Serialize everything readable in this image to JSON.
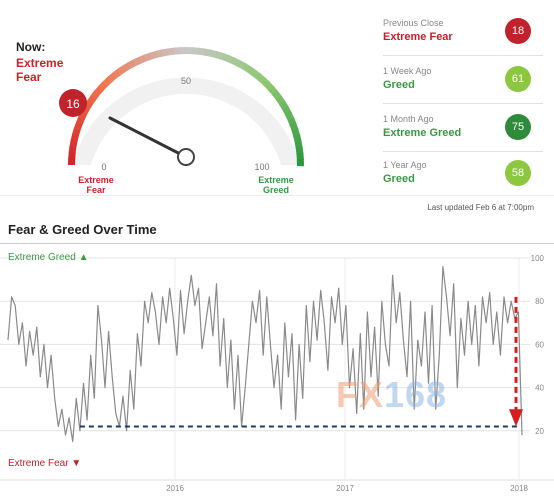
{
  "now": {
    "label": "Now:",
    "value_lines": [
      "Extreme",
      "Fear"
    ]
  },
  "gauge": {
    "value": 16,
    "labels": {
      "min": "0",
      "mid": "50",
      "max": "100"
    },
    "left_caption": [
      "Extreme",
      "Fear"
    ],
    "right_caption": [
      "Extreme",
      "Greed"
    ],
    "colors": {
      "fear": "#d0212a",
      "greed": "#3a9a42",
      "badge": "#c0232b"
    }
  },
  "history": [
    {
      "title": "Previous Close",
      "status": "Extreme Fear",
      "value": "18",
      "status_color": "#c0232b",
      "badge_color": "#c0232b"
    },
    {
      "title": "1 Week Ago",
      "status": "Greed",
      "value": "61",
      "status_color": "#3a9a42",
      "badge_color": "#8dc63f"
    },
    {
      "title": "1 Month Ago",
      "status": "Extreme Greed",
      "value": "75",
      "status_color": "#3a9a42",
      "badge_color": "#2e8b3a"
    },
    {
      "title": "1 Year Ago",
      "status": "Greed",
      "value": "58",
      "status_color": "#3a9a42",
      "badge_color": "#8dc63f"
    }
  ],
  "last_updated": "Last updated Feb 6 at 7:00pm",
  "chart_title": "Fear & Greed Over Time",
  "watermark": {
    "fx": "FX",
    "num": "168"
  },
  "chart_data": {
    "type": "line",
    "title": "Fear & Greed Over Time",
    "xlabel": "",
    "ylabel": "",
    "ylim": [
      0,
      100
    ],
    "y_ticks": [
      20,
      40,
      60,
      80,
      100
    ],
    "x_ticks": [
      "2016",
      "2017",
      "2018"
    ],
    "top_label": "Extreme Greed ▲",
    "bottom_label": "Extreme Fear ▼",
    "series": [
      {
        "values": [
          62,
          82,
          78,
          60,
          70,
          50,
          66,
          55,
          68,
          45,
          60,
          40,
          55,
          35,
          22,
          30,
          18,
          26,
          15,
          35,
          20,
          42,
          25,
          55,
          35,
          78,
          62,
          40,
          66,
          45,
          28,
          22,
          36,
          20,
          48,
          30,
          65,
          50,
          80,
          70,
          84,
          75,
          60,
          82,
          70,
          86,
          72,
          55,
          85,
          65,
          80,
          92,
          78,
          86,
          58,
          70,
          82,
          64,
          88,
          50,
          72,
          40,
          62,
          30,
          55,
          22,
          40,
          60,
          80,
          70,
          85,
          55,
          82,
          60,
          40,
          55,
          30,
          70,
          45,
          65,
          25,
          60,
          35,
          78,
          52,
          80,
          62,
          85,
          70,
          48,
          82,
          70,
          86,
          60,
          78,
          40,
          58,
          28,
          65,
          30,
          75,
          45,
          68,
          36,
          80,
          60,
          50,
          92,
          70,
          84,
          62,
          45,
          80,
          30,
          62,
          50,
          75,
          42,
          78,
          30,
          55,
          96,
          82,
          64,
          88,
          40,
          72,
          55,
          80,
          60,
          78,
          50,
          82,
          70,
          84,
          60,
          75,
          55,
          82,
          70,
          80,
          72,
          75,
          18
        ]
      }
    ],
    "baseline": {
      "value": 22,
      "from_index": 20
    },
    "colors": {
      "line": "#8a8a8a",
      "baseline": "#1f3a6b",
      "arrow": "#d11f1f",
      "greed_label": "#3a9a42",
      "fear_label": "#c0232b"
    }
  }
}
